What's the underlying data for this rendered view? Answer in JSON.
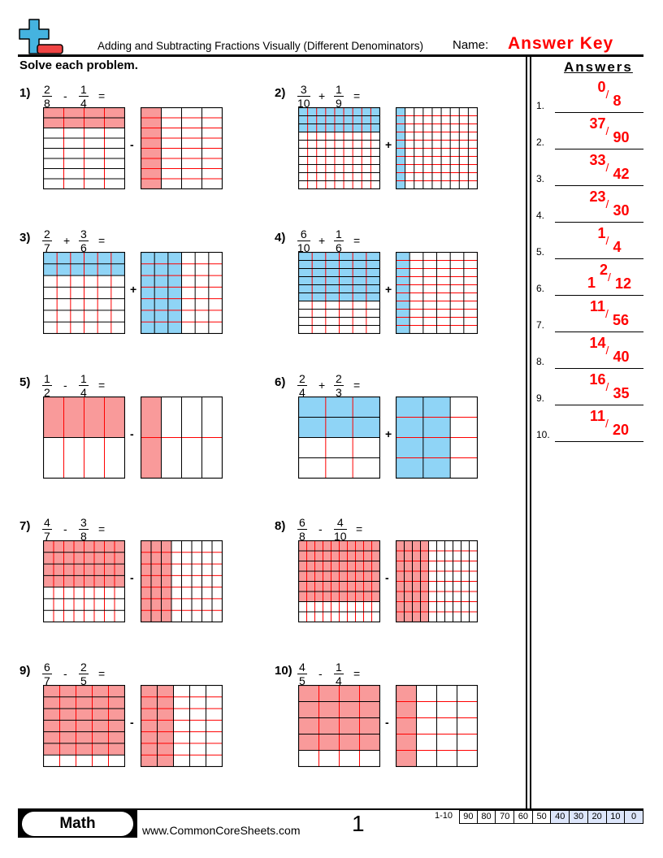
{
  "header": {
    "title": "Adding and Subtracting Fractions Visually (Different Denominators)",
    "name_label": "Name:",
    "name_value": "Answer Key",
    "instructions": "Solve each problem.",
    "logo": "plus-minus-logo-icon"
  },
  "colors": {
    "subtract_fill": "#f99a9a",
    "add_fill": "#8fd4f6",
    "grid_red": "#ff0000",
    "answer": "#ff0000"
  },
  "problems": [
    {
      "label": "1)",
      "n1": "2",
      "d1": "8",
      "op": "-",
      "n2": "1",
      "d2": "4"
    },
    {
      "label": "2)",
      "n1": "3",
      "d1": "10",
      "op": "+",
      "n2": "1",
      "d2": "9"
    },
    {
      "label": "3)",
      "n1": "2",
      "d1": "7",
      "op": "+",
      "n2": "3",
      "d2": "6"
    },
    {
      "label": "4)",
      "n1": "6",
      "d1": "10",
      "op": "+",
      "n2": "1",
      "d2": "6"
    },
    {
      "label": "5)",
      "n1": "1",
      "d1": "2",
      "op": "-",
      "n2": "1",
      "d2": "4"
    },
    {
      "label": "6)",
      "n1": "2",
      "d1": "4",
      "op": "+",
      "n2": "2",
      "d2": "3"
    },
    {
      "label": "7)",
      "n1": "4",
      "d1": "7",
      "op": "-",
      "n2": "3",
      "d2": "8"
    },
    {
      "label": "8)",
      "n1": "6",
      "d1": "8",
      "op": "-",
      "n2": "4",
      "d2": "10"
    },
    {
      "label": "9)",
      "n1": "6",
      "d1": "7",
      "op": "-",
      "n2": "2",
      "d2": "5"
    },
    {
      "label": "10)",
      "n1": "4",
      "d1": "5",
      "op": "-",
      "n2": "1",
      "d2": "4"
    }
  ],
  "equals": "=",
  "answers": {
    "heading": "Answers",
    "items": [
      {
        "label": "1.",
        "whole": "",
        "num": "0",
        "den": "8"
      },
      {
        "label": "2.",
        "whole": "",
        "num": "37",
        "den": "90"
      },
      {
        "label": "3.",
        "whole": "",
        "num": "33",
        "den": "42"
      },
      {
        "label": "4.",
        "whole": "",
        "num": "23",
        "den": "30"
      },
      {
        "label": "5.",
        "whole": "",
        "num": "1",
        "den": "4"
      },
      {
        "label": "6.",
        "whole": "1",
        "num": "2",
        "den": "12"
      },
      {
        "label": "7.",
        "whole": "",
        "num": "11",
        "den": "56"
      },
      {
        "label": "8.",
        "whole": "",
        "num": "14",
        "den": "40"
      },
      {
        "label": "9.",
        "whole": "",
        "num": "16",
        "den": "35"
      },
      {
        "label": "10.",
        "whole": "",
        "num": "11",
        "den": "20"
      }
    ],
    "slash": "/"
  },
  "footer": {
    "subject": "Math",
    "site": "www.CommonCoreSheets.com",
    "page": "1",
    "range": "1-10",
    "scores": [
      "90",
      "80",
      "70",
      "60",
      "50",
      "40",
      "30",
      "20",
      "10",
      "0"
    ]
  }
}
